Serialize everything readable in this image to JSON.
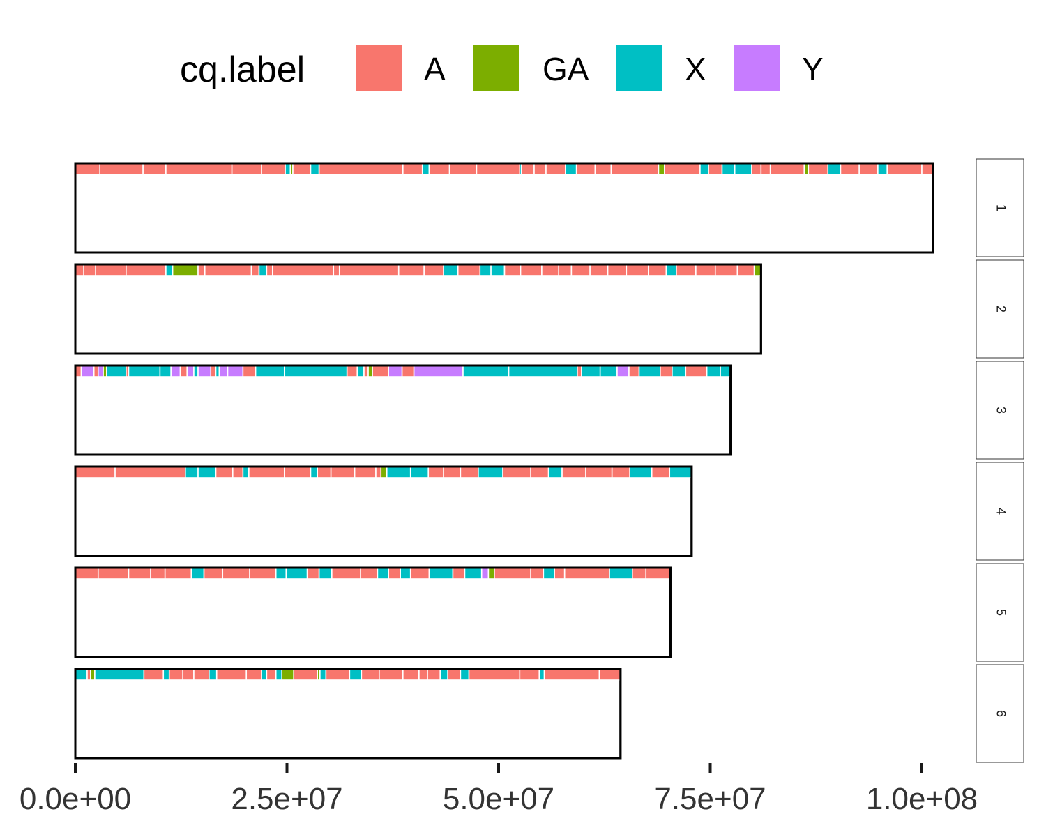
{
  "chart_data": {
    "type": "bar",
    "title": "",
    "xlabel": "",
    "ylabel": "",
    "legend": {
      "title": "cq.label",
      "placement": "top",
      "entries": [
        {
          "label": "A",
          "color": "#F8766D"
        },
        {
          "label": "GA",
          "color": "#7CAE00"
        },
        {
          "label": "X",
          "color": "#00BFC4"
        },
        {
          "label": "Y",
          "color": "#C77CFF"
        }
      ]
    },
    "xlim": [
      0,
      100000000
    ],
    "x_ticks": [
      0,
      25000000,
      50000000,
      75000000,
      100000000
    ],
    "x_tick_labels": [
      "0.0e+00",
      "2.5e+07",
      "5.0e+07",
      "7.5e+07",
      "1.0e+08"
    ],
    "facets": [
      {
        "label": "1",
        "length": 101300000,
        "segments": [
          [
            0,
            2900000,
            "A"
          ],
          [
            2900000,
            8000000,
            "A"
          ],
          [
            8000000,
            10700000,
            "A"
          ],
          [
            10700000,
            18500000,
            "A"
          ],
          [
            18500000,
            22000000,
            "A"
          ],
          [
            22000000,
            24800000,
            "A"
          ],
          [
            24800000,
            25400000,
            "X"
          ],
          [
            25400000,
            25700000,
            "GA"
          ],
          [
            25700000,
            27800000,
            "A"
          ],
          [
            27800000,
            28800000,
            "X"
          ],
          [
            28800000,
            38700000,
            "A"
          ],
          [
            38700000,
            41000000,
            "A"
          ],
          [
            41000000,
            41800000,
            "X"
          ],
          [
            41800000,
            44200000,
            "A"
          ],
          [
            44200000,
            47400000,
            "A"
          ],
          [
            47400000,
            52500000,
            "A"
          ],
          [
            52500000,
            52700000,
            "X"
          ],
          [
            52700000,
            54200000,
            "A"
          ],
          [
            54200000,
            55600000,
            "A"
          ],
          [
            55600000,
            57900000,
            "A"
          ],
          [
            57900000,
            59200000,
            "X"
          ],
          [
            59200000,
            61400000,
            "A"
          ],
          [
            61400000,
            63300000,
            "A"
          ],
          [
            63300000,
            62600000,
            "A"
          ],
          [
            63300000,
            68900000,
            "A"
          ],
          [
            68900000,
            69600000,
            "GA"
          ],
          [
            69600000,
            73800000,
            "A"
          ],
          [
            73800000,
            74800000,
            "X"
          ],
          [
            74800000,
            76400000,
            "A"
          ],
          [
            76400000,
            77900000,
            "X"
          ],
          [
            77900000,
            79900000,
            "X"
          ],
          [
            79900000,
            81000000,
            "A"
          ],
          [
            81000000,
            82100000,
            "A"
          ],
          [
            82100000,
            86100000,
            "A"
          ],
          [
            86100000,
            86600000,
            "GA"
          ],
          [
            86600000,
            88900000,
            "A"
          ],
          [
            88900000,
            90400000,
            "X"
          ],
          [
            90400000,
            92600000,
            "A"
          ],
          [
            92600000,
            94800000,
            "A"
          ],
          [
            94800000,
            95900000,
            "X"
          ],
          [
            95900000,
            100000000,
            "A"
          ],
          [
            100000000,
            101300000,
            "A"
          ]
        ]
      },
      {
        "label": "2",
        "length": 81000000,
        "segments": [
          [
            0,
            1000000,
            "A"
          ],
          [
            1000000,
            2400000,
            "A"
          ],
          [
            2400000,
            6000000,
            "A"
          ],
          [
            6000000,
            10700000,
            "A"
          ],
          [
            10700000,
            11500000,
            "X"
          ],
          [
            11500000,
            14500000,
            "GA"
          ],
          [
            14500000,
            15300000,
            "A"
          ],
          [
            15300000,
            20800000,
            "A"
          ],
          [
            20800000,
            21700000,
            "A"
          ],
          [
            21700000,
            22600000,
            "X"
          ],
          [
            22600000,
            23300000,
            "A"
          ],
          [
            23300000,
            30500000,
            "A"
          ],
          [
            30500000,
            31200000,
            "A"
          ],
          [
            31200000,
            38200000,
            "A"
          ],
          [
            38200000,
            41200000,
            "A"
          ],
          [
            41200000,
            43500000,
            "A"
          ],
          [
            43500000,
            45200000,
            "X"
          ],
          [
            45200000,
            47800000,
            "A"
          ],
          [
            47800000,
            49100000,
            "X"
          ],
          [
            49100000,
            50700000,
            "X"
          ],
          [
            50700000,
            52600000,
            "A"
          ],
          [
            52600000,
            55100000,
            "A"
          ],
          [
            55100000,
            57100000,
            "A"
          ],
          [
            57100000,
            58600000,
            "A"
          ],
          [
            58600000,
            60800000,
            "A"
          ],
          [
            60800000,
            62900000,
            "A"
          ],
          [
            62900000,
            65100000,
            "A"
          ],
          [
            65100000,
            67700000,
            "A"
          ],
          [
            67700000,
            69800000,
            "A"
          ],
          [
            69800000,
            71000000,
            "X"
          ],
          [
            71000000,
            73300000,
            "A"
          ],
          [
            73300000,
            75600000,
            "A"
          ],
          [
            75600000,
            78200000,
            "A"
          ],
          [
            78200000,
            80200000,
            "A"
          ],
          [
            80200000,
            81000000,
            "GA"
          ]
        ]
      },
      {
        "label": "3",
        "length": 77400000,
        "segments": [
          [
            0,
            700000,
            "A"
          ],
          [
            700000,
            2200000,
            "Y"
          ],
          [
            2200000,
            2700000,
            "A"
          ],
          [
            2700000,
            3300000,
            "Y"
          ],
          [
            3300000,
            3700000,
            "GA"
          ],
          [
            3700000,
            6000000,
            "X"
          ],
          [
            6000000,
            6300000,
            "A"
          ],
          [
            6300000,
            10000000,
            "X"
          ],
          [
            10000000,
            11300000,
            "X"
          ],
          [
            11300000,
            12400000,
            "Y"
          ],
          [
            12400000,
            13200000,
            "A"
          ],
          [
            13200000,
            14000000,
            "Y"
          ],
          [
            14000000,
            14500000,
            "X"
          ],
          [
            14500000,
            16000000,
            "Y"
          ],
          [
            16000000,
            16600000,
            "A"
          ],
          [
            16600000,
            17000000,
            "X"
          ],
          [
            17000000,
            18000000,
            "Y"
          ],
          [
            18000000,
            19800000,
            "Y"
          ],
          [
            19800000,
            21300000,
            "A"
          ],
          [
            21300000,
            24700000,
            "X"
          ],
          [
            24700000,
            32100000,
            "X"
          ],
          [
            32100000,
            33300000,
            "A"
          ],
          [
            33300000,
            34100000,
            "X"
          ],
          [
            34100000,
            34600000,
            "A"
          ],
          [
            34600000,
            35100000,
            "GA"
          ],
          [
            35100000,
            37000000,
            "A"
          ],
          [
            37000000,
            38600000,
            "Y"
          ],
          [
            38600000,
            40000000,
            "A"
          ],
          [
            40000000,
            45800000,
            "Y"
          ],
          [
            45800000,
            51200000,
            "X"
          ],
          [
            51200000,
            59300000,
            "X"
          ],
          [
            59300000,
            59800000,
            "A"
          ],
          [
            59800000,
            62000000,
            "X"
          ],
          [
            62000000,
            64000000,
            "X"
          ],
          [
            64000000,
            65400000,
            "Y"
          ],
          [
            65400000,
            66600000,
            "A"
          ],
          [
            66600000,
            69100000,
            "X"
          ],
          [
            69100000,
            70500000,
            "A"
          ],
          [
            70500000,
            72100000,
            "X"
          ],
          [
            72100000,
            74600000,
            "A"
          ],
          [
            74600000,
            76200000,
            "X"
          ],
          [
            76200000,
            77400000,
            "X"
          ]
        ]
      },
      {
        "label": "4",
        "length": 72800000,
        "segments": [
          [
            0,
            4700000,
            "A"
          ],
          [
            4700000,
            13000000,
            "A"
          ],
          [
            13000000,
            14500000,
            "X"
          ],
          [
            14500000,
            16600000,
            "X"
          ],
          [
            16600000,
            18600000,
            "A"
          ],
          [
            18600000,
            19800000,
            "A"
          ],
          [
            19800000,
            20500000,
            "X"
          ],
          [
            20500000,
            24700000,
            "A"
          ],
          [
            24700000,
            27800000,
            "A"
          ],
          [
            27800000,
            28600000,
            "X"
          ],
          [
            28600000,
            30200000,
            "A"
          ],
          [
            30200000,
            33000000,
            "A"
          ],
          [
            33000000,
            35500000,
            "A"
          ],
          [
            35500000,
            36100000,
            "A"
          ],
          [
            36100000,
            36800000,
            "GA"
          ],
          [
            36800000,
            39600000,
            "X"
          ],
          [
            39600000,
            41700000,
            "X"
          ],
          [
            41700000,
            43500000,
            "A"
          ],
          [
            43500000,
            45500000,
            "A"
          ],
          [
            45500000,
            47600000,
            "A"
          ],
          [
            47600000,
            50500000,
            "X"
          ],
          [
            50500000,
            53800000,
            "A"
          ],
          [
            53800000,
            55900000,
            "A"
          ],
          [
            55900000,
            57500000,
            "X"
          ],
          [
            57500000,
            60300000,
            "A"
          ],
          [
            60300000,
            63400000,
            "A"
          ],
          [
            63400000,
            65500000,
            "A"
          ],
          [
            65500000,
            68100000,
            "X"
          ],
          [
            68100000,
            70200000,
            "A"
          ],
          [
            70200000,
            72800000,
            "X"
          ]
        ]
      },
      {
        "label": "5",
        "length": 70300000,
        "segments": [
          [
            0,
            2700000,
            "A"
          ],
          [
            2700000,
            6300000,
            "A"
          ],
          [
            6300000,
            8900000,
            "A"
          ],
          [
            8900000,
            10600000,
            "A"
          ],
          [
            10600000,
            13700000,
            "A"
          ],
          [
            13700000,
            15200000,
            "X"
          ],
          [
            15200000,
            17400000,
            "A"
          ],
          [
            17400000,
            20600000,
            "A"
          ],
          [
            20600000,
            23700000,
            "A"
          ],
          [
            23700000,
            24900000,
            "X"
          ],
          [
            24900000,
            27400000,
            "X"
          ],
          [
            27400000,
            28800000,
            "A"
          ],
          [
            28800000,
            30300000,
            "X"
          ],
          [
            30300000,
            33700000,
            "A"
          ],
          [
            33700000,
            35700000,
            "A"
          ],
          [
            35700000,
            37000000,
            "X"
          ],
          [
            37000000,
            38400000,
            "A"
          ],
          [
            38400000,
            39600000,
            "X"
          ],
          [
            39600000,
            41800000,
            "A"
          ],
          [
            41800000,
            44600000,
            "X"
          ],
          [
            44600000,
            46000000,
            "A"
          ],
          [
            46000000,
            48000000,
            "X"
          ],
          [
            48000000,
            48800000,
            "Y"
          ],
          [
            48800000,
            49500000,
            "GA"
          ],
          [
            49500000,
            53800000,
            "A"
          ],
          [
            53800000,
            55300000,
            "A"
          ],
          [
            55300000,
            56600000,
            "X"
          ],
          [
            56600000,
            57800000,
            "A"
          ],
          [
            57800000,
            63100000,
            "A"
          ],
          [
            63100000,
            65800000,
            "X"
          ],
          [
            65800000,
            67400000,
            "A"
          ],
          [
            67400000,
            70300000,
            "A"
          ]
        ]
      },
      {
        "label": "6",
        "length": 64400000,
        "segments": [
          [
            0,
            1400000,
            "X"
          ],
          [
            1400000,
            1800000,
            "A"
          ],
          [
            1800000,
            2300000,
            "GA"
          ],
          [
            2300000,
            8100000,
            "X"
          ],
          [
            8100000,
            10400000,
            "A"
          ],
          [
            10400000,
            11100000,
            "X"
          ],
          [
            11100000,
            12700000,
            "A"
          ],
          [
            12700000,
            14000000,
            "A"
          ],
          [
            14000000,
            15800000,
            "A"
          ],
          [
            15800000,
            16700000,
            "X"
          ],
          [
            16700000,
            20200000,
            "A"
          ],
          [
            20200000,
            22000000,
            "A"
          ],
          [
            22000000,
            22600000,
            "X"
          ],
          [
            22600000,
            23700000,
            "A"
          ],
          [
            23700000,
            24400000,
            "X"
          ],
          [
            24400000,
            25800000,
            "GA"
          ],
          [
            25800000,
            28600000,
            "A"
          ],
          [
            28600000,
            28900000,
            "GA"
          ],
          [
            28900000,
            29600000,
            "X"
          ],
          [
            29600000,
            32400000,
            "A"
          ],
          [
            32400000,
            33800000,
            "X"
          ],
          [
            33800000,
            35900000,
            "A"
          ],
          [
            35900000,
            38700000,
            "A"
          ],
          [
            38700000,
            40600000,
            "A"
          ],
          [
            40600000,
            41600000,
            "A"
          ],
          [
            41600000,
            43100000,
            "A"
          ],
          [
            43100000,
            44000000,
            "X"
          ],
          [
            44000000,
            45500000,
            "A"
          ],
          [
            45500000,
            46500000,
            "X"
          ],
          [
            46500000,
            52500000,
            "A"
          ],
          [
            52500000,
            54800000,
            "A"
          ],
          [
            54800000,
            55400000,
            "X"
          ],
          [
            55400000,
            61900000,
            "A"
          ],
          [
            61900000,
            64400000,
            "A"
          ]
        ]
      }
    ]
  }
}
